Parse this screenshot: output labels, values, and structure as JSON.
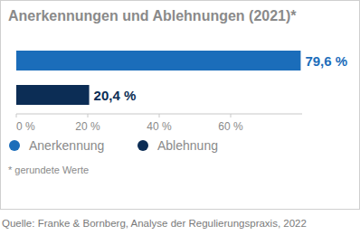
{
  "chart_data": {
    "type": "bar",
    "orientation": "horizontal",
    "title": "Anerkennungen und Ablehnungen (2021)*",
    "categories": [
      "Anerkennung",
      "Ablehnung"
    ],
    "values": [
      79.6,
      20.4
    ],
    "value_labels": [
      "79,6 %",
      "20,4 %"
    ],
    "colors": [
      "#1b6dba",
      "#0c2d55"
    ],
    "xlim": [
      0,
      80
    ],
    "xticks": [
      {
        "value": 0,
        "label": "0 %"
      },
      {
        "value": 20,
        "label": "20 %"
      },
      {
        "value": 40,
        "label": "40 %"
      },
      {
        "value": 60,
        "label": "60 %"
      }
    ],
    "grid": false,
    "data_labels": true,
    "tick_labels": "x",
    "legend": "bottom-left",
    "footnote": "* gerundete Werte",
    "source": "Quelle: Franke & Bornberg, Analyse der Regulierungspraxis, 2022"
  }
}
